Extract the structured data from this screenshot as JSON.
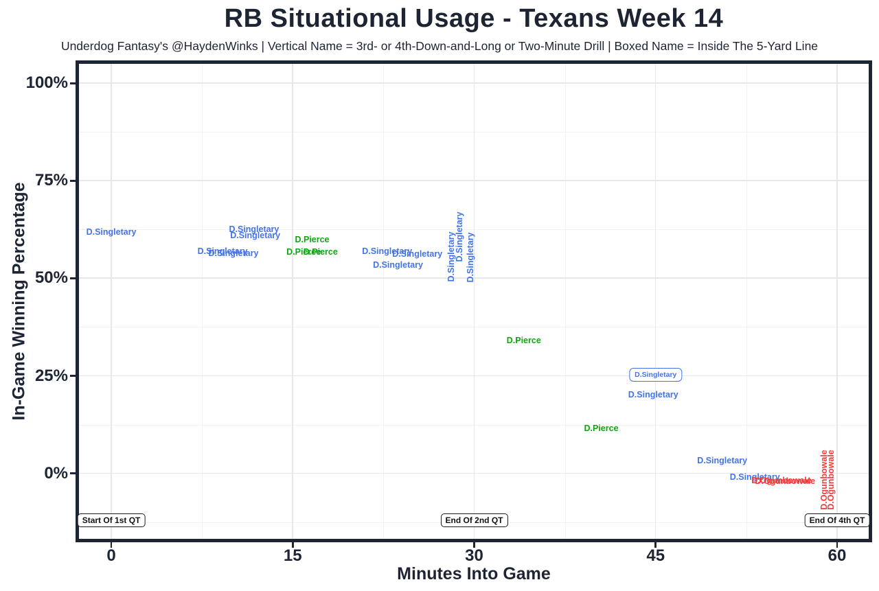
{
  "header": {
    "title": "RB Situational Usage - Texans Week 14",
    "subtitle": "Underdog Fantasy's @HaydenWinks | Vertical Name = 3rd- or 4th-Down-and-Long or Two-Minute Drill | Boxed Name = Inside The 5-Yard Line"
  },
  "chart_data": {
    "type": "scatter",
    "title": "RB Situational Usage - Texans Week 14",
    "subtitle": "Underdog Fantasy's @HaydenWinks | Vertical Name = 3rd- or 4th-Down-and-Long or Two-Minute Drill | Boxed Name = Inside The 5-Yard Line",
    "xlabel": "Minutes Into Game",
    "ylabel": "In-Game Winning Percentage",
    "xlim": [
      -2.67,
      62.61
    ],
    "ylim": [
      -16.8,
      105
    ],
    "x_major_ticks": [
      0,
      15,
      30,
      45,
      60
    ],
    "x_tick_labels": [
      "0",
      "15",
      "30",
      "45",
      "60"
    ],
    "x_minor_gridlines": [
      7.5,
      22.5,
      37.5,
      52.5
    ],
    "y_major_ticks": [
      0,
      25,
      50,
      75,
      100
    ],
    "y_tick_labels": [
      "0%",
      "25%",
      "50%",
      "75%",
      "100%"
    ],
    "y_minor_gridlines": [
      -12.5,
      12.5,
      37.5,
      62.5,
      87.5
    ],
    "grid": true,
    "legend_position": "none",
    "colors": {
      "blue": "#4373E8",
      "green": "#0CA80C",
      "red": "#F23B3B",
      "axis": "#1D2433"
    },
    "players": {
      "blue": "D.Singletary",
      "green": "D.Pierce",
      "red": "D.Ogunbowale"
    },
    "points": [
      {
        "label": "D.Singletary",
        "x": 0.0,
        "y": 61.8,
        "color": "blue",
        "orient": "h",
        "boxed": false
      },
      {
        "label": "D.Singletary",
        "x": 11.8,
        "y": 62.5,
        "color": "blue",
        "orient": "h",
        "boxed": false
      },
      {
        "label": "D.Singletary",
        "x": 11.9,
        "y": 61.0,
        "color": "blue",
        "orient": "h",
        "boxed": false
      },
      {
        "label": "D.Singletary",
        "x": 9.2,
        "y": 56.9,
        "color": "blue",
        "orient": "h",
        "boxed": false
      },
      {
        "label": "D.Singletary",
        "x": 10.1,
        "y": 56.4,
        "color": "blue",
        "orient": "h",
        "boxed": false
      },
      {
        "label": "D.Pierce",
        "x": 16.6,
        "y": 59.9,
        "color": "green",
        "orient": "h",
        "boxed": false
      },
      {
        "label": "D.Pierce",
        "x": 15.9,
        "y": 56.8,
        "color": "green",
        "orient": "h",
        "boxed": false
      },
      {
        "label": "D.Pierce",
        "x": 17.3,
        "y": 56.8,
        "color": "green",
        "orient": "h",
        "boxed": false
      },
      {
        "label": "D.Singletary",
        "x": 22.8,
        "y": 57.0,
        "color": "blue",
        "orient": "h",
        "boxed": false
      },
      {
        "label": "D.Singletary",
        "x": 25.3,
        "y": 56.3,
        "color": "blue",
        "orient": "h",
        "boxed": false
      },
      {
        "label": "D.Singletary",
        "x": 23.7,
        "y": 53.5,
        "color": "blue",
        "orient": "h",
        "boxed": false
      },
      {
        "label": "D.Singletary",
        "x": 28.1,
        "y": 55.5,
        "color": "blue",
        "orient": "v",
        "boxed": false
      },
      {
        "label": "D.Singletary",
        "x": 28.8,
        "y": 60.6,
        "color": "blue",
        "orient": "v",
        "boxed": false
      },
      {
        "label": "D.Singletary",
        "x": 29.7,
        "y": 55.3,
        "color": "blue",
        "orient": "v",
        "boxed": false
      },
      {
        "label": "D.Pierce",
        "x": 34.1,
        "y": 34.1,
        "color": "green",
        "orient": "h",
        "boxed": false
      },
      {
        "label": "D.Singletary",
        "x": 45.0,
        "y": 25.3,
        "color": "blue",
        "orient": "h",
        "boxed": true
      },
      {
        "label": "D.Singletary",
        "x": 44.8,
        "y": 20.1,
        "color": "blue",
        "orient": "h",
        "boxed": false
      },
      {
        "label": "D.Pierce",
        "x": 40.5,
        "y": 11.6,
        "color": "green",
        "orient": "h",
        "boxed": false
      },
      {
        "label": "D.Singletary",
        "x": 50.5,
        "y": 3.3,
        "color": "blue",
        "orient": "h",
        "boxed": false
      },
      {
        "label": "D.Singletary",
        "x": 53.2,
        "y": -1.0,
        "color": "blue",
        "orient": "h",
        "boxed": false
      },
      {
        "label": "D.Ogunbowale",
        "x": 55.4,
        "y": -1.8,
        "color": "red",
        "orient": "h",
        "boxed": false
      },
      {
        "label": "D.Ogunbowale",
        "x": 55.7,
        "y": -2.0,
        "color": "red",
        "orient": "h",
        "boxed": false
      },
      {
        "label": "D.Ogunbowale",
        "x": 58.9,
        "y": -1.7,
        "color": "red",
        "orient": "v",
        "boxed": false
      },
      {
        "label": "D.Ogunbowale",
        "x": 59.5,
        "y": -1.7,
        "color": "red",
        "orient": "v",
        "boxed": false
      }
    ],
    "annotations": [
      {
        "label": "Start Of 1st QT",
        "x": 0,
        "y": -12
      },
      {
        "label": "End Of 2nd QT",
        "x": 30,
        "y": -12
      },
      {
        "label": "End Of 4th QT",
        "x": 60,
        "y": -12
      }
    ]
  }
}
